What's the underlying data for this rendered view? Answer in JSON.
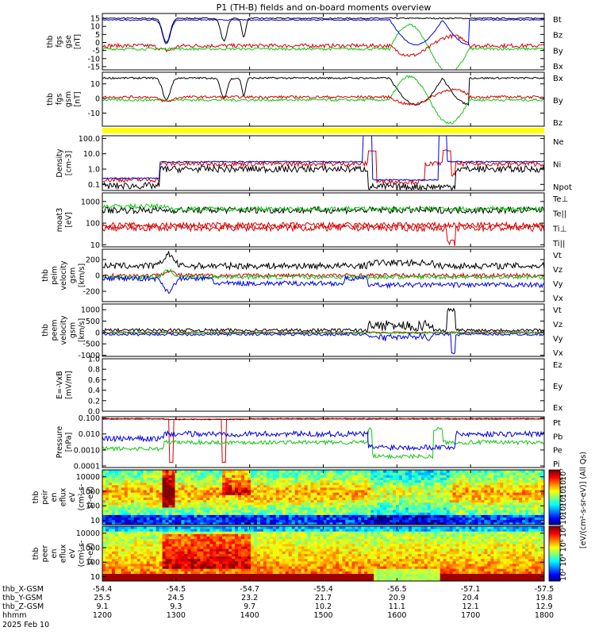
{
  "title": "P1 (TH-B) fields and on-board moments overview",
  "colors": {
    "black": "#000000",
    "red": "#d40000",
    "green": "#16c516",
    "blue": "#0000e0",
    "yellow": "#ffff00"
  },
  "chart_data": [
    {
      "type": "line",
      "ylabel": [
        "thb",
        "fgs",
        "gse",
        "[nT]"
      ],
      "yticks": [
        "15",
        "10",
        "5",
        "0",
        "-5",
        "-10",
        "-15"
      ],
      "ylim": [
        -17,
        18
      ],
      "series": [
        {
          "name": "Bt",
          "color": "black"
        },
        {
          "name": "Bz",
          "color": "red"
        },
        {
          "name": "By",
          "color": "green"
        },
        {
          "name": "Bx",
          "color": "blue"
        }
      ]
    },
    {
      "type": "line",
      "ylabel": [
        "thb",
        "fgs",
        "gsm",
        "[nT]"
      ],
      "yticks": [
        "10",
        "0",
        "-10"
      ],
      "ylim": [
        -19,
        18
      ],
      "series": [
        {
          "name": "Bx",
          "color": "black"
        },
        {
          "name": "By",
          "color": "green"
        },
        {
          "name": "Bz",
          "color": "red"
        }
      ]
    },
    {
      "type": "line",
      "ylabel": [
        "Density",
        "[cm-3]"
      ],
      "yticks": [
        "100.0",
        "10.0",
        "1.0",
        "0.1"
      ],
      "log": true,
      "ylim": [
        0.04,
        150
      ],
      "series": [
        {
          "name": "Ne",
          "color": "red"
        },
        {
          "name": "Ni",
          "color": "black"
        },
        {
          "name": "Npot",
          "color": "blue"
        }
      ]
    },
    {
      "type": "line",
      "ylabel": [
        "moat3",
        "[eV]"
      ],
      "yticks": [
        "1000",
        "100",
        "10"
      ],
      "log": true,
      "ylim": [
        8,
        2500
      ],
      "series": [
        {
          "name": "Te⊥",
          "color": "red"
        },
        {
          "name": "Te||",
          "color": "black"
        },
        {
          "name": "Ti⊥",
          "color": "red"
        },
        {
          "name": "Ti||",
          "color": "green"
        }
      ]
    },
    {
      "type": "line",
      "ylabel": [
        "thb",
        "peim",
        "velocity",
        "gsm",
        "[km/s]"
      ],
      "yticks": [
        "200",
        "0",
        "-200"
      ],
      "ylim": [
        -330,
        330
      ],
      "series": [
        {
          "name": "Vt",
          "color": "black"
        },
        {
          "name": "Vz",
          "color": "red"
        },
        {
          "name": "Vy",
          "color": "green"
        },
        {
          "name": "Vx",
          "color": "blue"
        }
      ]
    },
    {
      "type": "line",
      "ylabel": [
        "thb",
        "peem",
        "velocity",
        "gsm",
        "[km/s]"
      ],
      "yticks": [
        "1000",
        "500",
        "0",
        "-500",
        "-1000"
      ],
      "ylim": [
        -1050,
        1250
      ],
      "series": [
        {
          "name": "Vt",
          "color": "black"
        },
        {
          "name": "Vz",
          "color": "red"
        },
        {
          "name": "Vy",
          "color": "green"
        },
        {
          "name": "Vx",
          "color": "blue"
        }
      ]
    },
    {
      "type": "line",
      "ylabel": [
        "E=-VxB",
        "[mV/m]"
      ],
      "yticks": [
        "1.0",
        "0.8",
        "0.6",
        "0.4",
        "0.2",
        "0.0"
      ],
      "ylim": [
        0,
        1
      ],
      "series": [
        {
          "name": "Ez",
          "color": "red"
        },
        {
          "name": "Ey",
          "color": "green"
        },
        {
          "name": "Ex",
          "color": "blue"
        }
      ]
    },
    {
      "type": "line",
      "ylabel": [
        "Pressure",
        "[nPa]"
      ],
      "yticks": [
        "0.100",
        "0.010",
        "0.0010",
        "0.0001"
      ],
      "log": true,
      "ylim": [
        8e-05,
        0.12
      ],
      "series": [
        {
          "name": "Pt",
          "color": "black"
        },
        {
          "name": "Pb",
          "color": "red"
        },
        {
          "name": "Pe",
          "color": "green"
        },
        {
          "name": "Pi",
          "color": "blue"
        }
      ]
    },
    {
      "type": "heatmap",
      "ylabel": [
        "thb",
        "peir",
        "en",
        "eflux",
        "eV",
        "(cm²-s-",
        "sr-eV)"
      ],
      "yticks": [
        "10000",
        "1000",
        "100",
        "10"
      ],
      "log": true,
      "ylim": [
        5,
        30000
      ],
      "colorbar": {
        "ticks": [
          "10⁷",
          "10⁶",
          "10⁵",
          "10⁴",
          "10³",
          "10²"
        ]
      }
    },
    {
      "type": "heatmap",
      "ylabel": [
        "thb",
        "peer",
        "en",
        "eflux",
        "eV",
        "(cm²-s-",
        "sr-eV)"
      ],
      "yticks": [
        "10000",
        "1000",
        "100",
        "10"
      ],
      "log": true,
      "ylim": [
        5,
        30000
      ],
      "colorbar": {
        "ticks": [
          "10⁸",
          "10⁶",
          "10⁴",
          "10²"
        ]
      }
    }
  ],
  "colorbar_label": "[eV/(cm²-s-sr-eV)] (All Qs)",
  "x_axis": {
    "rows": [
      {
        "label": "thb_X-GSM",
        "values": [
          "-54.4",
          "-54.5",
          "-54.7",
          "-55.4",
          "-56.5",
          "-57.1",
          "-57.5"
        ]
      },
      {
        "label": "thb_Y-GSM",
        "values": [
          "25.5",
          "24.5",
          "23.2",
          "21.7",
          "20.9",
          "20.4",
          "19.8"
        ]
      },
      {
        "label": "thb_Z-GSM",
        "values": [
          "9.1",
          "9.3",
          "9.7",
          "10.2",
          "11.1",
          "12.1",
          "12.9"
        ]
      },
      {
        "label": "hhmm",
        "values": [
          "1200",
          "1300",
          "1400",
          "1500",
          "1600",
          "1700",
          "1800"
        ]
      }
    ],
    "date": "2025 Feb 10"
  }
}
